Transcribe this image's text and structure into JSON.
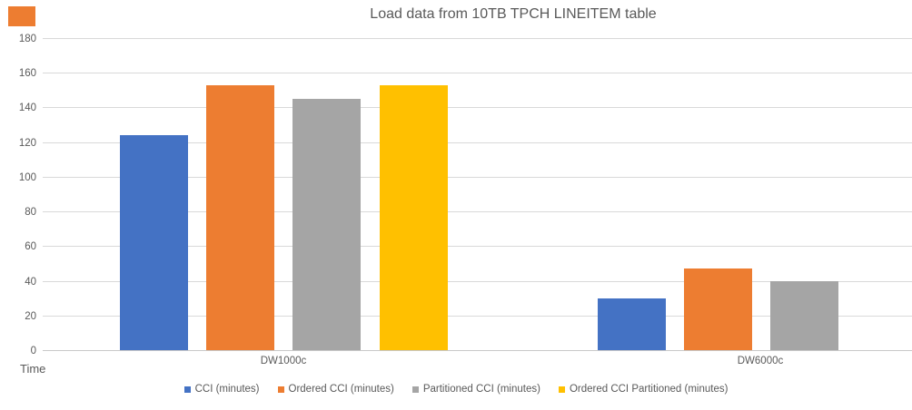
{
  "chart_data": {
    "type": "bar",
    "title": "Load data from 10TB TPCH LINEITEM table",
    "categories": [
      "DW1000c",
      "DW6000c"
    ],
    "series": [
      {
        "name": "CCI (minutes)",
        "color": "#4472C4",
        "values": [
          124,
          30
        ]
      },
      {
        "name": "Ordered CCI (minutes)",
        "color": "#ED7D31",
        "values": [
          153,
          47
        ]
      },
      {
        "name": "Partitioned CCI (minutes)",
        "color": "#A5A5A5",
        "values": [
          145,
          40
        ]
      },
      {
        "name": "Ordered CCI Partitioned (minutes)",
        "color": "#FFC000",
        "values": [
          153,
          null
        ]
      }
    ],
    "xlabel": "",
    "ylabel": "Time",
    "ylim": [
      0,
      180
    ],
    "ytick_step": 20,
    "grid": true,
    "legend_position": "bottom",
    "gridline_color": "#D9D9D9",
    "text_color": "#595959"
  },
  "decor": {
    "corner_marker_color": "#ED7D31"
  }
}
